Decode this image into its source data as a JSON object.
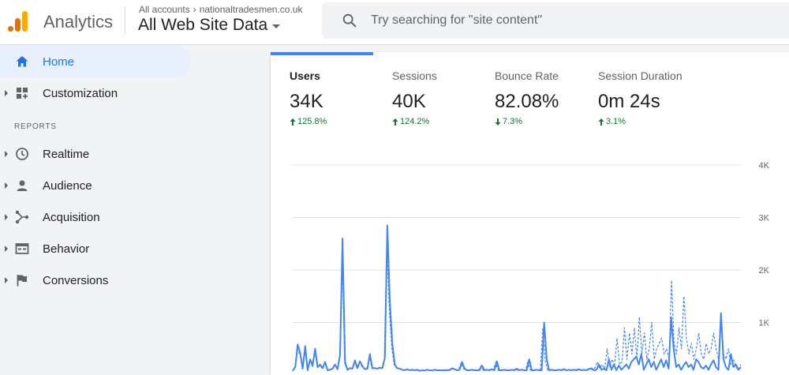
{
  "header": {
    "app_title": "Analytics",
    "account_path": [
      "All accounts",
      "nationaltradesmen.co.uk"
    ],
    "view_name": "All Web Site Data",
    "search_placeholder": "Try searching for \"site content\""
  },
  "sidebar": {
    "home": "Home",
    "customization": "Customization",
    "reports_heading": "REPORTS",
    "items": [
      {
        "label": "Realtime",
        "icon": "clock-icon"
      },
      {
        "label": "Audience",
        "icon": "person-icon"
      },
      {
        "label": "Acquisition",
        "icon": "acquisition-icon"
      },
      {
        "label": "Behavior",
        "icon": "behavior-icon"
      },
      {
        "label": "Conversions",
        "icon": "flag-icon"
      }
    ]
  },
  "metrics": [
    {
      "label": "Users",
      "value": "34K",
      "change": "125.8%",
      "direction": "up"
    },
    {
      "label": "Sessions",
      "value": "40K",
      "change": "124.2%",
      "direction": "up"
    },
    {
      "label": "Bounce Rate",
      "value": "82.08%",
      "change": "7.3%",
      "direction": "down"
    },
    {
      "label": "Session Duration",
      "value": "0m 24s",
      "change": "3.1%",
      "direction": "up"
    }
  ],
  "colors": {
    "accent": "#1a73e8",
    "line": "#4285f4",
    "positive": "#137333",
    "active_bg": "#e8f0fe"
  },
  "chart_data": {
    "type": "line",
    "y_ticks": [
      "4K",
      "3K",
      "2K",
      "1K"
    ],
    "ylim": [
      0,
      4000
    ],
    "grid": true,
    "series": [
      {
        "style": "solid",
        "values": [
          80,
          150,
          580,
          420,
          120,
          550,
          90,
          300,
          180,
          500,
          150,
          200,
          130,
          250,
          90,
          100,
          120,
          200,
          110,
          380,
          2600,
          250,
          100,
          130,
          120,
          280,
          130,
          260,
          170,
          110,
          120,
          400,
          130,
          130,
          120,
          140,
          130,
          330,
          2850,
          1400,
          600,
          200,
          130,
          120,
          100,
          90,
          110,
          90,
          100,
          90,
          100,
          80,
          90,
          85,
          100,
          90,
          85,
          100,
          90,
          90,
          90,
          90,
          95,
          90,
          130,
          110,
          90,
          100,
          250,
          120,
          90,
          90,
          100,
          90,
          90,
          90,
          180,
          90,
          100,
          90,
          110,
          90,
          260,
          90,
          90,
          100,
          90,
          90,
          100,
          90,
          120,
          90,
          100,
          90,
          90,
          300,
          90,
          90,
          100,
          90,
          90,
          1000,
          300,
          90,
          100,
          90,
          90,
          100,
          90,
          110,
          90,
          100,
          90,
          100,
          90,
          110,
          90,
          100,
          90,
          110,
          130,
          90,
          100,
          200,
          100,
          120,
          90,
          300,
          100,
          200,
          90,
          180,
          100,
          150,
          200,
          120,
          250,
          300,
          350,
          200,
          400,
          100,
          200,
          300,
          150,
          250,
          100,
          200,
          300,
          150,
          280,
          120,
          1100,
          500,
          150,
          200,
          100,
          180,
          250,
          150,
          200,
          100,
          300,
          250,
          150,
          120,
          180,
          100,
          200,
          280,
          150,
          100,
          1180,
          300,
          150,
          100,
          400,
          150,
          200,
          100,
          150
        ]
      },
      {
        "style": "dashed",
        "values": [
          90,
          150,
          480,
          380,
          130,
          450,
          100,
          280,
          160,
          430,
          140,
          180,
          120,
          220,
          100,
          110,
          120,
          180,
          110,
          350,
          2300,
          220,
          110,
          130,
          120,
          250,
          130,
          230,
          160,
          110,
          130,
          360,
          130,
          140,
          120,
          130,
          120,
          300,
          2500,
          1250,
          520,
          190,
          130,
          120,
          100,
          90,
          110,
          90,
          100,
          90,
          100,
          80,
          90,
          85,
          100,
          90,
          85,
          100,
          90,
          90,
          90,
          90,
          95,
          90,
          120,
          110,
          90,
          100,
          230,
          120,
          90,
          90,
          100,
          90,
          90,
          90,
          170,
          90,
          100,
          90,
          110,
          90,
          240,
          90,
          90,
          100,
          90,
          90,
          100,
          90,
          110,
          90,
          100,
          90,
          90,
          270,
          90,
          90,
          100,
          90,
          90,
          900,
          270,
          90,
          100,
          90,
          90,
          100,
          90,
          110,
          90,
          100,
          90,
          100,
          90,
          110,
          90,
          100,
          90,
          110,
          130,
          100,
          130,
          250,
          130,
          200,
          120,
          500,
          150,
          300,
          200,
          700,
          200,
          250,
          900,
          300,
          800,
          400,
          900,
          300,
          1100,
          400,
          800,
          300,
          500,
          1000,
          300,
          500,
          600,
          700,
          400,
          500,
          300,
          1800,
          600,
          400,
          900,
          500,
          1500,
          700,
          400,
          600,
          300,
          500,
          800,
          400,
          300,
          600,
          400,
          500,
          800,
          500,
          300,
          1000,
          400,
          300,
          500,
          200,
          300,
          150,
          100,
          200
        ]
      }
    ]
  }
}
